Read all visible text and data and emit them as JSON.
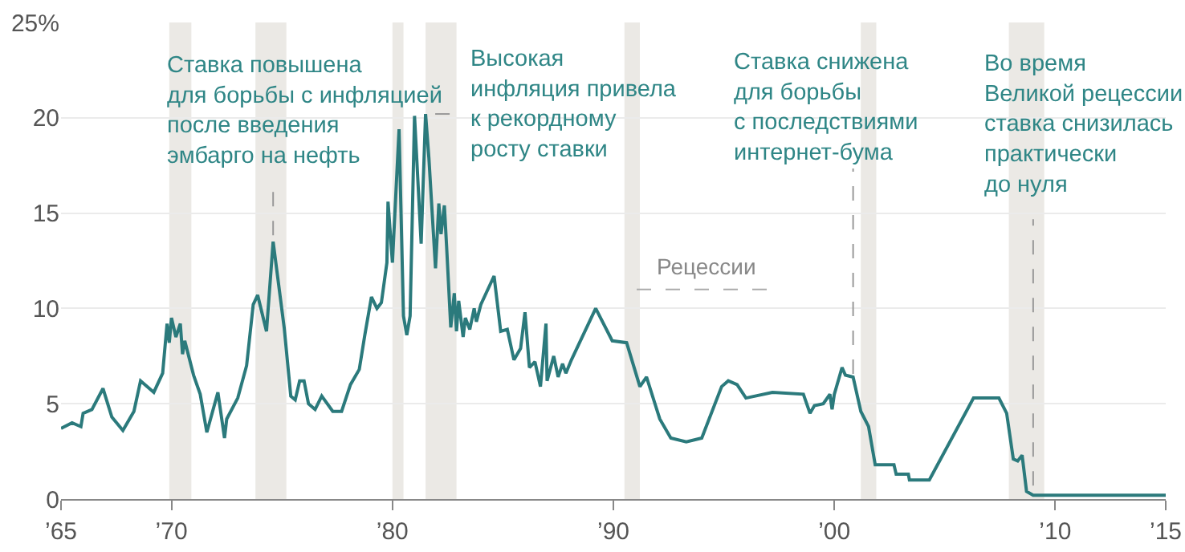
{
  "chart_data": {
    "type": "line",
    "color": "#2b7a7c",
    "x": [
      1965.0,
      1965.5,
      1965.9,
      1966.0,
      1966.4,
      1966.9,
      1967.3,
      1967.8,
      1968.3,
      1968.6,
      1969.2,
      1969.6,
      1969.8,
      1969.9,
      1970.0,
      1970.2,
      1970.4,
      1970.5,
      1970.6,
      1971.0,
      1971.3,
      1971.6,
      1972.1,
      1972.4,
      1972.5,
      1973.0,
      1973.4,
      1973.7,
      1973.9,
      1974.3,
      1974.6,
      1975.1,
      1975.4,
      1975.6,
      1975.8,
      1976.0,
      1976.2,
      1976.5,
      1976.8,
      1977.3,
      1977.7,
      1978.1,
      1978.5,
      1978.75,
      1979.05,
      1979.3,
      1979.5,
      1979.75,
      1979.8,
      1980.0,
      1980.3,
      1980.5,
      1980.65,
      1980.8,
      1981.0,
      1981.3,
      1981.5,
      1981.65,
      1981.95,
      1982.1,
      1982.2,
      1982.35,
      1982.45,
      1982.64,
      1982.8,
      1982.9,
      1983.0,
      1983.2,
      1983.3,
      1983.5,
      1983.7,
      1983.8,
      1984.0,
      1984.6,
      1984.9,
      1985.2,
      1985.5,
      1985.8,
      1986.0,
      1986.2,
      1986.45,
      1986.7,
      1986.95,
      1987.0,
      1987.3,
      1987.5,
      1987.7,
      1987.85,
      1988.1,
      1989.2,
      1989.95,
      1990.6,
      1991.2,
      1991.5,
      1992.1,
      1992.6,
      1993.3,
      1994.0,
      1994.9,
      1995.2,
      1995.6,
      1996.0,
      1997.2,
      1998.6,
      1998.9,
      1999.1,
      1999.5,
      1999.8,
      1999.9,
      2000.0,
      2000.35,
      2000.5,
      2000.85,
      2001.2,
      2001.55,
      2001.85,
      2002.7,
      2002.8,
      2003.35,
      2003.4,
      2004.3,
      2006.3,
      2007.45,
      2007.8,
      2008.1,
      2008.3,
      2008.5,
      2008.7,
      2009.0,
      2010.6,
      2015.0
    ],
    "values": [
      3.7,
      4.0,
      3.8,
      4.5,
      4.7,
      5.8,
      4.3,
      3.6,
      4.6,
      6.2,
      5.6,
      6.6,
      9.2,
      8.2,
      9.5,
      8.5,
      9.2,
      7.6,
      8.3,
      6.5,
      5.5,
      3.5,
      5.6,
      3.2,
      4.2,
      5.3,
      7.0,
      10.2,
      10.7,
      8.8,
      13.5,
      9.0,
      5.4,
      5.2,
      6.2,
      6.2,
      5.0,
      4.7,
      5.4,
      4.6,
      4.6,
      6.0,
      6.8,
      8.6,
      10.6,
      10.0,
      10.3,
      12.4,
      15.6,
      12.4,
      19.4,
      9.6,
      8.6,
      9.6,
      20.1,
      13.4,
      20.2,
      17.9,
      12.1,
      15.5,
      13.9,
      15.4,
      13.3,
      9.0,
      10.8,
      8.8,
      10.4,
      8.5,
      9.5,
      8.9,
      10.0,
      9.3,
      10.2,
      11.7,
      8.8,
      8.9,
      7.3,
      7.9,
      9.8,
      6.9,
      7.2,
      5.9,
      9.2,
      6.2,
      7.5,
      6.4,
      7.1,
      6.6,
      7.3,
      10.0,
      8.3,
      8.2,
      5.9,
      6.4,
      4.2,
      3.2,
      3.0,
      3.2,
      5.9,
      6.2,
      6.0,
      5.3,
      5.6,
      5.5,
      4.5,
      4.9,
      5.0,
      5.5,
      4.7,
      5.5,
      6.9,
      6.5,
      6.4,
      4.6,
      3.8,
      1.8,
      1.8,
      1.3,
      1.3,
      1.0,
      1.0,
      5.3,
      5.3,
      4.5,
      2.1,
      2.0,
      2.3,
      0.4,
      0.2,
      0.2,
      0.2
    ],
    "xlim": [
      1965,
      2015
    ],
    "xticks": [
      {
        "value": 1965,
        "label": "’65"
      },
      {
        "value": 1970,
        "label": "’70"
      },
      {
        "value": 1980,
        "label": "’80"
      },
      {
        "value": 1990,
        "label": "’90"
      },
      {
        "value": 2000,
        "label": "’00"
      },
      {
        "value": 2010,
        "label": "’10"
      },
      {
        "value": 2015,
        "label": "’15"
      }
    ],
    "ylim": [
      0,
      25
    ],
    "yticks": [
      0,
      5,
      10,
      15,
      20,
      {
        "value": 25,
        "label": "25%"
      }
    ],
    "grid": "y",
    "marker": "none",
    "line_style": "solid",
    "legend": false,
    "bands": [
      {
        "axis": "x",
        "from": 1969.9,
        "to": 1970.9,
        "color": "#ebe9e5"
      },
      {
        "axis": "x",
        "from": 1973.8,
        "to": 1975.2,
        "color": "#ebe9e5"
      },
      {
        "axis": "x",
        "from": 1980.0,
        "to": 1980.5,
        "color": "#ebe9e5"
      },
      {
        "axis": "x",
        "from": 1981.5,
        "to": 1982.9,
        "color": "#ebe9e5"
      },
      {
        "axis": "x",
        "from": 1990.5,
        "to": 1991.2,
        "color": "#ebe9e5",
        "label": "Рецессии"
      },
      {
        "axis": "x",
        "from": 2001.2,
        "to": 2001.9,
        "color": "#ebe9e5"
      },
      {
        "axis": "x",
        "from": 2007.9,
        "to": 2009.5,
        "color": "#ebe9e5"
      }
    ],
    "annotations": [
      {
        "text": "Ставка повышена\nдля борьбы с инфляцией\nпосле введения\nэмбарго на нефть",
        "x": 1974.6,
        "y": 13.5
      },
      {
        "text": "Высокая\nинфляция привела\nк рекордному\nросту ставки",
        "x": 1981.5,
        "y": 20.2
      },
      {
        "text": "Ставка снижена\nдля борьбы\nс последствиями\nинтернет-бума",
        "x": 2000.85,
        "y": 6.4
      },
      {
        "text": "Во время\nВеликой рецессии\nставка снизилась\nпрактически\nдо нуля",
        "x": 2009.0,
        "y": 0.2
      }
    ]
  }
}
